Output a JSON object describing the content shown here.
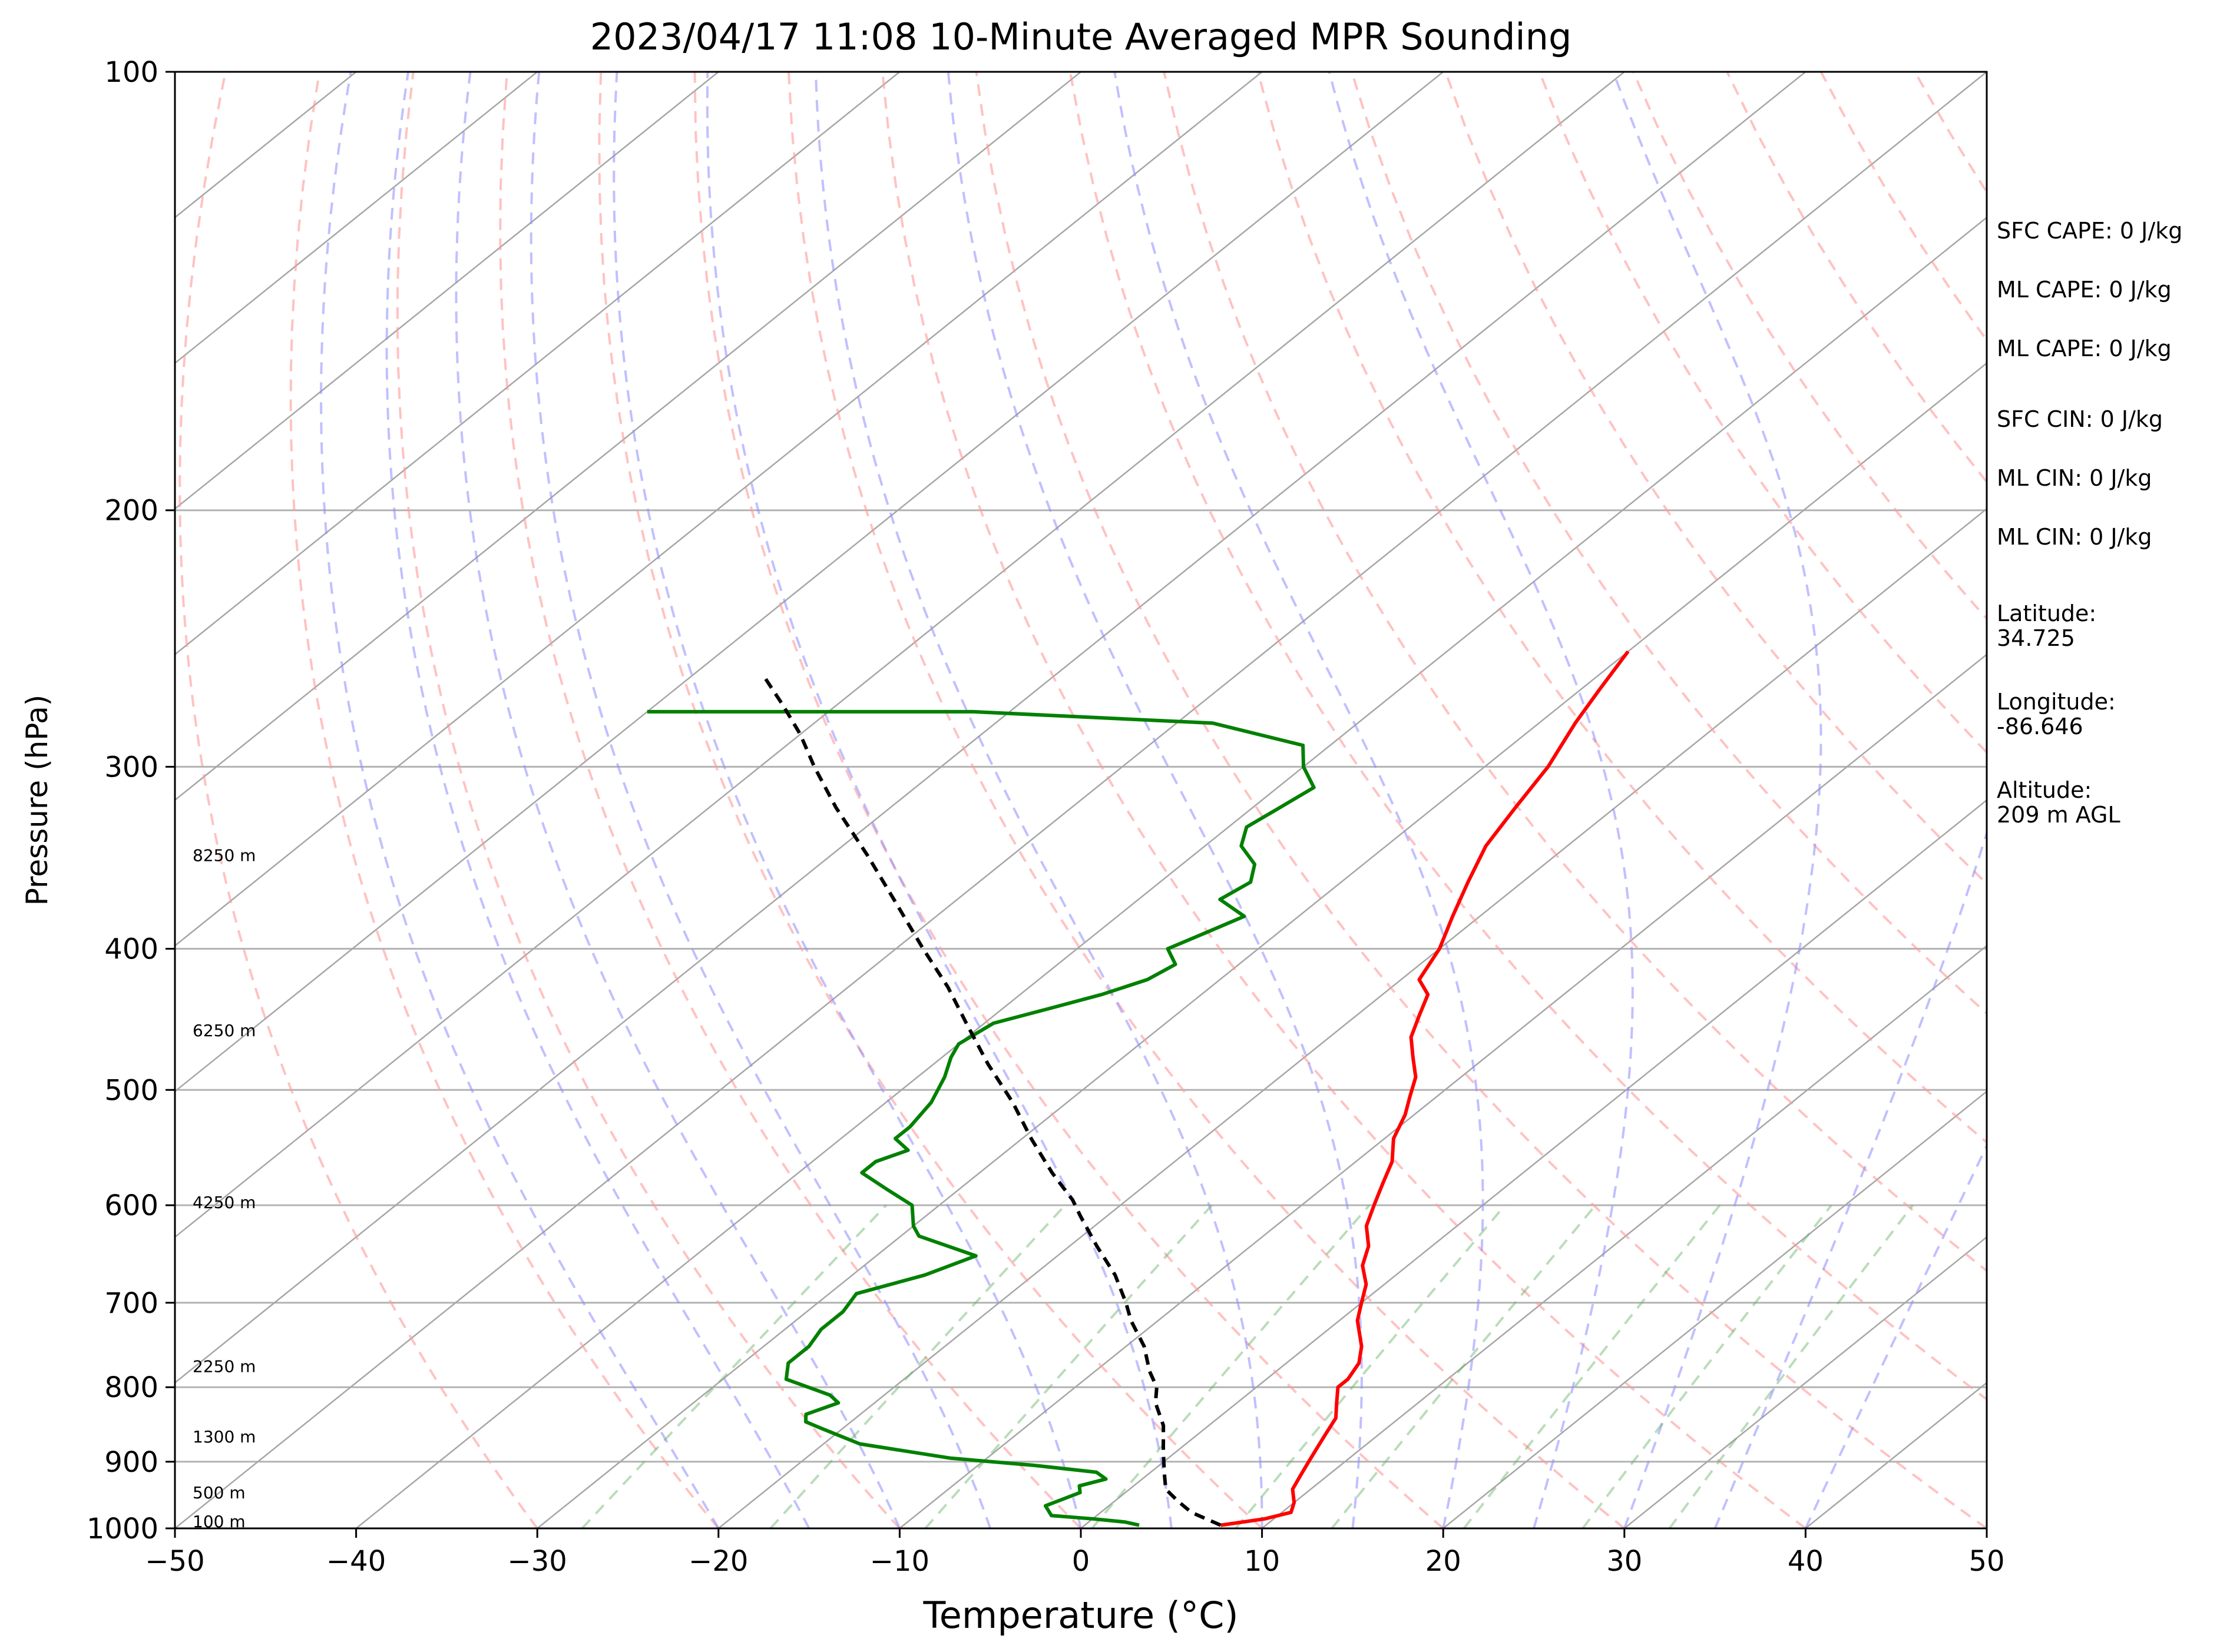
{
  "chart_data": {
    "type": "line",
    "title": "2023/04/17 11:08 10-Minute Averaged MPR Sounding",
    "xlabel": "Temperature (°C)",
    "ylabel": "Pressure (hPa)",
    "xlim": [
      -50,
      50
    ],
    "ylim": [
      1000,
      100
    ],
    "y_scale": "log",
    "skew": 1.0,
    "grid": true,
    "x_ticks": [
      -50,
      -40,
      -30,
      -20,
      -10,
      0,
      10,
      20,
      30,
      40,
      50
    ],
    "x_tick_labels": [
      "−50",
      "−40",
      "−30",
      "−20",
      "−10",
      "0",
      "10",
      "20",
      "30",
      "40",
      "50"
    ],
    "y_ticks": [
      1000,
      900,
      800,
      700,
      600,
      500,
      400,
      300,
      200,
      100
    ],
    "y_tick_labels": [
      "1000",
      "900",
      "800",
      "700",
      "600",
      "500",
      "400",
      "300",
      "200",
      "100"
    ],
    "height_labels": [
      {
        "text": "100 m",
        "pressure": 989
      },
      {
        "text": "500 m",
        "pressure": 945
      },
      {
        "text": "1300 m",
        "pressure": 865
      },
      {
        "text": "2250 m",
        "pressure": 774
      },
      {
        "text": "4250 m",
        "pressure": 597
      },
      {
        "text": "6250 m",
        "pressure": 455
      },
      {
        "text": "8250 m",
        "pressure": 345
      }
    ],
    "series": [
      {
        "color": "#ff0000",
        "style": "solid",
        "points": [
          [
            7.5,
            995
          ],
          [
            9.5,
            985
          ],
          [
            10.5,
            975
          ],
          [
            10,
            960
          ],
          [
            9,
            940
          ],
          [
            8.5,
            920
          ],
          [
            8,
            900
          ],
          [
            7.5,
            880
          ],
          [
            7,
            860
          ],
          [
            6.5,
            840
          ],
          [
            5.5,
            820
          ],
          [
            4.5,
            800
          ],
          [
            4.5,
            790
          ],
          [
            4,
            770
          ],
          [
            3,
            750
          ],
          [
            1,
            720
          ],
          [
            0,
            700
          ],
          [
            -1,
            680
          ],
          [
            -2.5,
            660
          ],
          [
            -3.5,
            640
          ],
          [
            -5,
            620
          ],
          [
            -6,
            600
          ],
          [
            -7,
            580
          ],
          [
            -8,
            560
          ],
          [
            -9.5,
            540
          ],
          [
            -10.5,
            520
          ],
          [
            -11.5,
            505
          ],
          [
            -12.5,
            490
          ],
          [
            -14,
            475
          ],
          [
            -15.5,
            460
          ],
          [
            -16.5,
            445
          ],
          [
            -17.5,
            430
          ],
          [
            -19,
            420
          ],
          [
            -20,
            400
          ],
          [
            -21.5,
            380
          ],
          [
            -23,
            360
          ],
          [
            -24.5,
            340
          ],
          [
            -25.5,
            320
          ],
          [
            -26.5,
            300
          ],
          [
            -28,
            280
          ],
          [
            -29,
            265
          ],
          [
            -30,
            250
          ]
        ]
      },
      {
        "color": "#008000",
        "style": "solid",
        "points": [
          [
            3,
            995
          ],
          [
            2,
            990
          ],
          [
            0,
            985
          ],
          [
            -2.5,
            980
          ],
          [
            -3.5,
            965
          ],
          [
            -3,
            955
          ],
          [
            -2.5,
            945
          ],
          [
            -3,
            935
          ],
          [
            -2,
            925
          ],
          [
            -3,
            915
          ],
          [
            -7,
            905
          ],
          [
            -12,
            895
          ],
          [
            -18,
            875
          ],
          [
            -21,
            855
          ],
          [
            -22.5,
            845
          ],
          [
            -23,
            835
          ],
          [
            -22,
            820
          ],
          [
            -23,
            810
          ],
          [
            -26.5,
            790
          ],
          [
            -27.5,
            770
          ],
          [
            -27.5,
            750
          ],
          [
            -28,
            730
          ],
          [
            -28,
            710
          ],
          [
            -28.5,
            690
          ],
          [
            -26,
            670
          ],
          [
            -24.5,
            650
          ],
          [
            -29,
            630
          ],
          [
            -30,
            620
          ],
          [
            -31.5,
            600
          ],
          [
            -34,
            585
          ],
          [
            -36.5,
            570
          ],
          [
            -36.5,
            560
          ],
          [
            -35.5,
            550
          ],
          [
            -37,
            540
          ],
          [
            -37,
            530
          ],
          [
            -37.5,
            510
          ],
          [
            -38.5,
            490
          ],
          [
            -39.5,
            475
          ],
          [
            -40,
            465
          ],
          [
            -39.5,
            450
          ],
          [
            -37.5,
            440
          ],
          [
            -35.5,
            430
          ],
          [
            -34,
            420
          ],
          [
            -33.5,
            410
          ],
          [
            -35,
            400
          ],
          [
            -34,
            390
          ],
          [
            -33,
            380
          ],
          [
            -35.5,
            370
          ],
          [
            -35,
            360
          ],
          [
            -36,
            350
          ],
          [
            -38,
            340
          ],
          [
            -39,
            330
          ],
          [
            -38.5,
            320
          ],
          [
            -38,
            310
          ],
          [
            -40,
            300
          ],
          [
            -41.5,
            290
          ],
          [
            -48,
            280
          ],
          [
            -62,
            275
          ],
          [
            -80,
            275
          ]
        ]
      },
      {
        "color": "#000000",
        "style": "dashed",
        "points": [
          [
            7.5,
            995
          ],
          [
            5,
            975
          ],
          [
            3.5,
            958
          ],
          [
            2,
            940
          ],
          [
            1,
            920
          ],
          [
            0,
            900
          ],
          [
            -1,
            880
          ],
          [
            -2.5,
            850
          ],
          [
            -4.5,
            820
          ],
          [
            -5.5,
            800
          ],
          [
            -7,
            780
          ],
          [
            -9,
            750
          ],
          [
            -11.5,
            720
          ],
          [
            -13,
            700
          ],
          [
            -15.5,
            670
          ],
          [
            -18.5,
            640
          ],
          [
            -21.5,
            610
          ],
          [
            -23,
            595
          ],
          [
            -26,
            570
          ],
          [
            -29.5,
            540
          ],
          [
            -33,
            510
          ],
          [
            -37,
            480
          ],
          [
            -41,
            450
          ],
          [
            -44.5,
            425
          ],
          [
            -48.5,
            400
          ],
          [
            -53.5,
            370
          ],
          [
            -58,
            345
          ],
          [
            -63,
            320
          ],
          [
            -67,
            300
          ],
          [
            -70,
            285
          ],
          [
            -73,
            272
          ],
          [
            -76,
            260
          ]
        ]
      }
    ]
  },
  "info_panel": {
    "sfc_cape": "SFC CAPE: 0 J/kg",
    "ml_cape_1": "ML CAPE: 0 J/kg",
    "ml_cape_2": "ML CAPE: 0 J/kg",
    "sfc_cin": "SFC CIN: 0 J/kg",
    "ml_cin_1": "ML CIN: 0 J/kg",
    "ml_cin_2": "ML CIN: 0 J/kg",
    "latitude_label": "Latitude:",
    "latitude_value": "34.725",
    "longitude_label": "Longitude:",
    "longitude_value": "-86.646",
    "altitude_label": "Altitude:",
    "altitude_value": "209 m AGL"
  }
}
